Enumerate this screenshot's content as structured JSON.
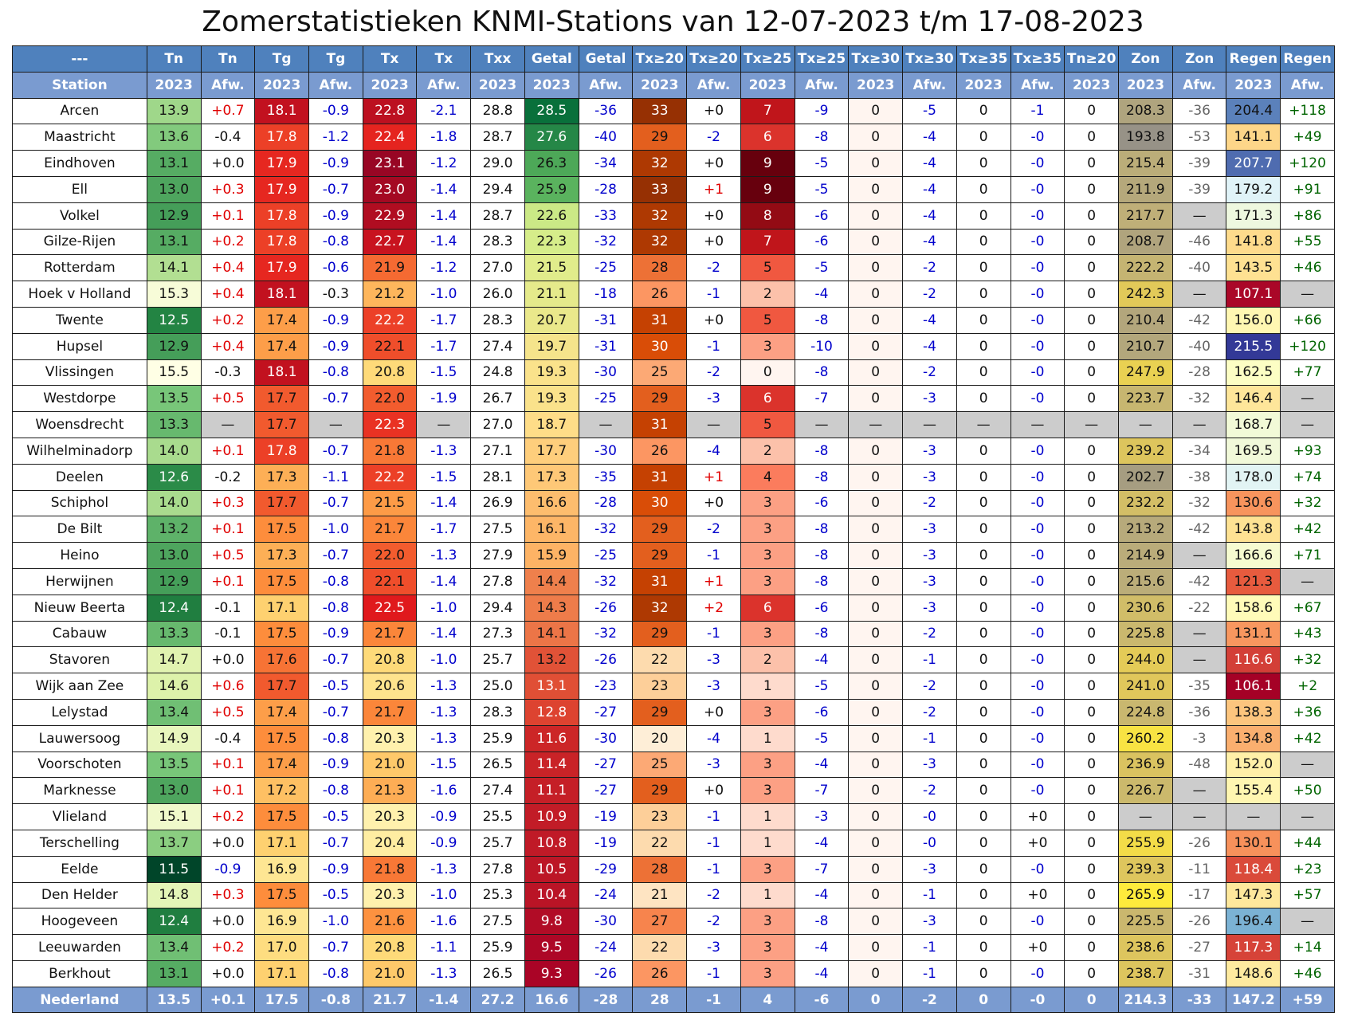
{
  "title": "Zomerstatistieken KNMI-Stations van 12-07-2023 t/m 17-08-2023",
  "chart_data": {
    "type": "table",
    "header_row1": [
      "---",
      "Tn",
      "Tn",
      "Tg",
      "Tg",
      "Tx",
      "Tx",
      "Txx",
      "Getal",
      "Getal",
      "Tx≥20",
      "Tx≥20",
      "Tx≥25",
      "Tx≥25",
      "Tx≥30",
      "Tx≥30",
      "Tx≥35",
      "Tx≥35",
      "Tn≥20",
      "Zon",
      "Zon",
      "Regen",
      "Regen"
    ],
    "header_row2": [
      "Station",
      "2023",
      "Afw.",
      "2023",
      "Afw.",
      "2023",
      "Afw.",
      "2023",
      "2023",
      "Afw.",
      "2023",
      "Afw.",
      "2023",
      "Afw.",
      "2023",
      "Afw.",
      "2023",
      "Afw.",
      "2023",
      "2023",
      "Afw.",
      "2023",
      "Afw."
    ],
    "rows": [
      [
        "Arcen",
        "13.9",
        "+0.7",
        "18.1",
        "-0.9",
        "22.8",
        "-2.1",
        "28.8",
        "28.5",
        "-36",
        "33",
        "+0",
        "7",
        "-9",
        "0",
        "-5",
        "0",
        "-1",
        "0",
        "208.3",
        "-36",
        "204.4",
        "+118"
      ],
      [
        "Maastricht",
        "13.6",
        "-0.4",
        "17.8",
        "-1.2",
        "22.4",
        "-1.8",
        "28.7",
        "27.6",
        "-40",
        "29",
        "-2",
        "6",
        "-8",
        "0",
        "-4",
        "0",
        "-0",
        "0",
        "193.8",
        "-53",
        "141.1",
        "+49"
      ],
      [
        "Eindhoven",
        "13.1",
        "+0.0",
        "17.9",
        "-0.9",
        "23.1",
        "-1.2",
        "29.0",
        "26.3",
        "-34",
        "32",
        "+0",
        "9",
        "-5",
        "0",
        "-4",
        "0",
        "-0",
        "0",
        "215.4",
        "-39",
        "207.7",
        "+120"
      ],
      [
        "Ell",
        "13.0",
        "+0.3",
        "17.9",
        "-0.7",
        "23.0",
        "-1.4",
        "29.4",
        "25.9",
        "-28",
        "33",
        "+1",
        "9",
        "-5",
        "0",
        "-4",
        "0",
        "-0",
        "0",
        "211.9",
        "-39",
        "179.2",
        "+91"
      ],
      [
        "Volkel",
        "12.9",
        "+0.1",
        "17.8",
        "-0.9",
        "22.9",
        "-1.4",
        "28.7",
        "22.6",
        "-33",
        "32",
        "+0",
        "8",
        "-6",
        "0",
        "-4",
        "0",
        "-0",
        "0",
        "217.7",
        "—",
        "171.3",
        "+86"
      ],
      [
        "Gilze-Rijen",
        "13.1",
        "+0.2",
        "17.8",
        "-0.8",
        "22.7",
        "-1.4",
        "28.3",
        "22.3",
        "-32",
        "32",
        "+0",
        "7",
        "-6",
        "0",
        "-4",
        "0",
        "-0",
        "0",
        "208.7",
        "-46",
        "141.8",
        "+55"
      ],
      [
        "Rotterdam",
        "14.1",
        "+0.4",
        "17.9",
        "-0.6",
        "21.9",
        "-1.2",
        "27.0",
        "21.5",
        "-25",
        "28",
        "-2",
        "5",
        "-5",
        "0",
        "-2",
        "0",
        "-0",
        "0",
        "222.2",
        "-40",
        "143.5",
        "+46"
      ],
      [
        "Hoek v Holland",
        "15.3",
        "+0.4",
        "18.1",
        "-0.3",
        "21.2",
        "-1.0",
        "26.0",
        "21.1",
        "-18",
        "26",
        "-1",
        "2",
        "-4",
        "0",
        "-2",
        "0",
        "-0",
        "0",
        "242.3",
        "—",
        "107.1",
        "—"
      ],
      [
        "Twente",
        "12.5",
        "+0.2",
        "17.4",
        "-0.9",
        "22.2",
        "-1.7",
        "28.3",
        "20.7",
        "-31",
        "31",
        "+0",
        "5",
        "-8",
        "0",
        "-4",
        "0",
        "-0",
        "0",
        "210.4",
        "-42",
        "156.0",
        "+66"
      ],
      [
        "Hupsel",
        "12.9",
        "+0.4",
        "17.4",
        "-0.9",
        "22.1",
        "-1.7",
        "27.4",
        "19.7",
        "-31",
        "30",
        "-1",
        "3",
        "-10",
        "0",
        "-4",
        "0",
        "-0",
        "0",
        "210.7",
        "-40",
        "215.5",
        "+120"
      ],
      [
        "Vlissingen",
        "15.5",
        "-0.3",
        "18.1",
        "-0.8",
        "20.8",
        "-1.5",
        "24.8",
        "19.3",
        "-30",
        "25",
        "-2",
        "0",
        "-8",
        "0",
        "-2",
        "0",
        "-0",
        "0",
        "247.9",
        "-28",
        "162.5",
        "+77"
      ],
      [
        "Westdorpe",
        "13.5",
        "+0.5",
        "17.7",
        "-0.7",
        "22.0",
        "-1.9",
        "26.7",
        "19.3",
        "-25",
        "29",
        "-3",
        "6",
        "-7",
        "0",
        "-3",
        "0",
        "-0",
        "0",
        "223.7",
        "-32",
        "146.4",
        "—"
      ],
      [
        "Woensdrecht",
        "13.3",
        "—",
        "17.7",
        "—",
        "22.3",
        "—",
        "27.0",
        "18.7",
        "—",
        "31",
        "—",
        "5",
        "—",
        "—",
        "—",
        "—",
        "—",
        "—",
        "—",
        "—",
        "168.7",
        "—"
      ],
      [
        "Wilhelminadorp",
        "14.0",
        "+0.1",
        "17.8",
        "-0.7",
        "21.8",
        "-1.3",
        "27.1",
        "17.7",
        "-30",
        "26",
        "-4",
        "2",
        "-8",
        "0",
        "-3",
        "0",
        "-0",
        "0",
        "239.2",
        "-34",
        "169.5",
        "+93"
      ],
      [
        "Deelen",
        "12.6",
        "-0.2",
        "17.3",
        "-1.1",
        "22.2",
        "-1.5",
        "28.1",
        "17.3",
        "-35",
        "31",
        "+1",
        "4",
        "-8",
        "0",
        "-3",
        "0",
        "-0",
        "0",
        "202.7",
        "-38",
        "178.0",
        "+74"
      ],
      [
        "Schiphol",
        "14.0",
        "+0.3",
        "17.7",
        "-0.7",
        "21.5",
        "-1.4",
        "26.9",
        "16.6",
        "-28",
        "30",
        "+0",
        "3",
        "-6",
        "0",
        "-2",
        "0",
        "-0",
        "0",
        "232.2",
        "-32",
        "130.6",
        "+32"
      ],
      [
        "De Bilt",
        "13.2",
        "+0.1",
        "17.5",
        "-1.0",
        "21.7",
        "-1.7",
        "27.5",
        "16.1",
        "-32",
        "29",
        "-2",
        "3",
        "-8",
        "0",
        "-3",
        "0",
        "-0",
        "0",
        "213.2",
        "-42",
        "143.8",
        "+42"
      ],
      [
        "Heino",
        "13.0",
        "+0.5",
        "17.3",
        "-0.7",
        "22.0",
        "-1.3",
        "27.9",
        "15.9",
        "-25",
        "29",
        "-1",
        "3",
        "-8",
        "0",
        "-3",
        "0",
        "-0",
        "0",
        "214.9",
        "—",
        "166.6",
        "+71"
      ],
      [
        "Herwijnen",
        "12.9",
        "+0.1",
        "17.5",
        "-0.8",
        "22.1",
        "-1.4",
        "27.8",
        "14.4",
        "-32",
        "31",
        "+1",
        "3",
        "-8",
        "0",
        "-3",
        "0",
        "-0",
        "0",
        "215.6",
        "-42",
        "121.3",
        "—"
      ],
      [
        "Nieuw Beerta",
        "12.4",
        "-0.1",
        "17.1",
        "-0.8",
        "22.5",
        "-1.0",
        "29.4",
        "14.3",
        "-26",
        "32",
        "+2",
        "6",
        "-6",
        "0",
        "-3",
        "0",
        "-0",
        "0",
        "230.6",
        "-22",
        "158.6",
        "+67"
      ],
      [
        "Cabauw",
        "13.3",
        "-0.1",
        "17.5",
        "-0.9",
        "21.7",
        "-1.4",
        "27.3",
        "14.1",
        "-32",
        "29",
        "-1",
        "3",
        "-8",
        "0",
        "-2",
        "0",
        "-0",
        "0",
        "225.8",
        "—",
        "131.1",
        "+43"
      ],
      [
        "Stavoren",
        "14.7",
        "+0.0",
        "17.6",
        "-0.7",
        "20.8",
        "-1.0",
        "25.7",
        "13.2",
        "-26",
        "22",
        "-3",
        "2",
        "-4",
        "0",
        "-1",
        "0",
        "-0",
        "0",
        "244.0",
        "—",
        "116.6",
        "+32"
      ],
      [
        "Wijk aan Zee",
        "14.6",
        "+0.6",
        "17.7",
        "-0.5",
        "20.6",
        "-1.3",
        "25.0",
        "13.1",
        "-23",
        "23",
        "-3",
        "1",
        "-5",
        "0",
        "-2",
        "0",
        "-0",
        "0",
        "241.0",
        "-35",
        "106.1",
        "+2"
      ],
      [
        "Lelystad",
        "13.4",
        "+0.5",
        "17.4",
        "-0.7",
        "21.7",
        "-1.3",
        "28.3",
        "12.8",
        "-27",
        "29",
        "+0",
        "3",
        "-6",
        "0",
        "-2",
        "0",
        "-0",
        "0",
        "224.8",
        "-36",
        "138.3",
        "+36"
      ],
      [
        "Lauwersoog",
        "14.9",
        "-0.4",
        "17.5",
        "-0.8",
        "20.3",
        "-1.3",
        "25.9",
        "11.6",
        "-30",
        "20",
        "-4",
        "1",
        "-5",
        "0",
        "-1",
        "0",
        "-0",
        "0",
        "260.2",
        "-3",
        "134.8",
        "+42"
      ],
      [
        "Voorschoten",
        "13.5",
        "+0.1",
        "17.4",
        "-0.9",
        "21.0",
        "-1.5",
        "26.5",
        "11.4",
        "-27",
        "25",
        "-3",
        "3",
        "-4",
        "0",
        "-3",
        "0",
        "-0",
        "0",
        "236.9",
        "-48",
        "152.0",
        "—"
      ],
      [
        "Marknesse",
        "13.0",
        "+0.1",
        "17.2",
        "-0.8",
        "21.3",
        "-1.6",
        "27.4",
        "11.1",
        "-27",
        "29",
        "+0",
        "3",
        "-7",
        "0",
        "-2",
        "0",
        "-0",
        "0",
        "226.7",
        "—",
        "155.4",
        "+50"
      ],
      [
        "Vlieland",
        "15.1",
        "+0.2",
        "17.5",
        "-0.5",
        "20.3",
        "-0.9",
        "25.5",
        "10.9",
        "-19",
        "23",
        "-1",
        "1",
        "-3",
        "0",
        "-0",
        "0",
        "+0",
        "0",
        "—",
        "—",
        "—",
        "—"
      ],
      [
        "Terschelling",
        "13.7",
        "+0.0",
        "17.1",
        "-0.7",
        "20.4",
        "-0.9",
        "25.7",
        "10.8",
        "-19",
        "22",
        "-1",
        "1",
        "-4",
        "0",
        "-0",
        "0",
        "+0",
        "0",
        "255.9",
        "-26",
        "130.1",
        "+44"
      ],
      [
        "Eelde",
        "11.5",
        "-0.9",
        "16.9",
        "-0.9",
        "21.8",
        "-1.3",
        "27.8",
        "10.5",
        "-29",
        "28",
        "-1",
        "3",
        "-7",
        "0",
        "-3",
        "0",
        "-0",
        "0",
        "239.3",
        "-11",
        "118.4",
        "+23"
      ],
      [
        "Den Helder",
        "14.8",
        "+0.3",
        "17.5",
        "-0.5",
        "20.3",
        "-1.0",
        "25.3",
        "10.4",
        "-24",
        "21",
        "-2",
        "1",
        "-4",
        "0",
        "-1",
        "0",
        "+0",
        "0",
        "265.9",
        "-17",
        "147.3",
        "+57"
      ],
      [
        "Hoogeveen",
        "12.4",
        "+0.0",
        "16.9",
        "-1.0",
        "21.6",
        "-1.6",
        "27.5",
        "9.8",
        "-30",
        "27",
        "-2",
        "3",
        "-8",
        "0",
        "-3",
        "0",
        "-0",
        "0",
        "225.5",
        "-26",
        "196.4",
        "—"
      ],
      [
        "Leeuwarden",
        "13.4",
        "+0.2",
        "17.0",
        "-0.7",
        "20.8",
        "-1.1",
        "25.9",
        "9.5",
        "-24",
        "22",
        "-3",
        "3",
        "-4",
        "0",
        "-1",
        "0",
        "+0",
        "0",
        "238.6",
        "-27",
        "117.3",
        "+14"
      ],
      [
        "Berkhout",
        "13.1",
        "+0.0",
        "17.1",
        "-0.8",
        "21.0",
        "-1.3",
        "26.5",
        "9.3",
        "-26",
        "26",
        "-1",
        "3",
        "-4",
        "0",
        "-1",
        "0",
        "-0",
        "0",
        "238.7",
        "-31",
        "148.6",
        "+46"
      ]
    ],
    "footer": [
      "Nederland",
      "13.5",
      "+0.1",
      "17.5",
      "-0.8",
      "21.7",
      "-1.4",
      "27.2",
      "16.6",
      "-28",
      "28",
      "-1",
      "4",
      "-6",
      "0",
      "-2",
      "0",
      "-0",
      "0",
      "214.3",
      "-33",
      "147.2",
      "+59"
    ]
  }
}
